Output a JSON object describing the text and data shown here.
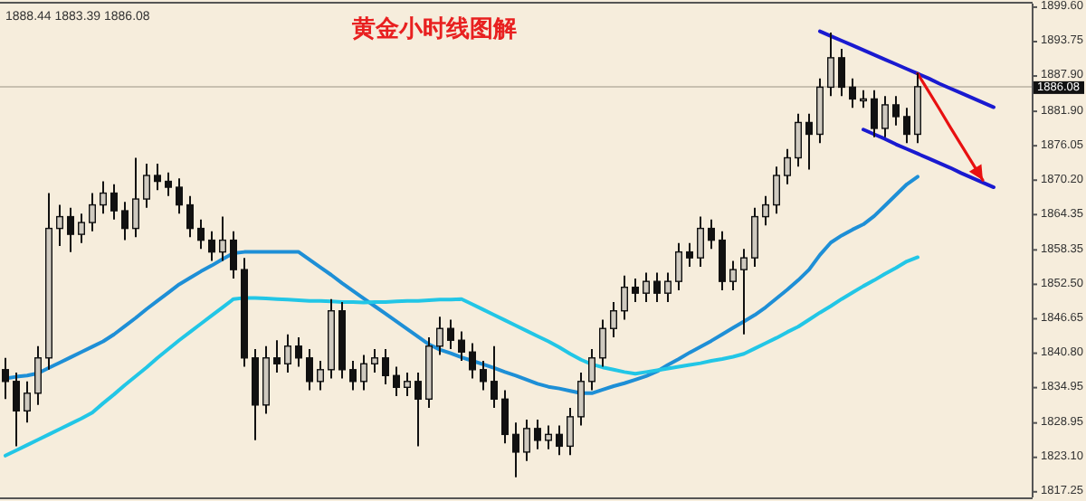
{
  "chart_data": {
    "type": "candlestick",
    "title": "黄金小时线图解",
    "annotations": [
      "1888.44 1883.39 1886.08"
    ],
    "categories": [
      null,
      null,
      null,
      null,
      null,
      null,
      null,
      null,
      null,
      null,
      null,
      null,
      null,
      null,
      null,
      null,
      null,
      null,
      null,
      null,
      null,
      null,
      null,
      null,
      null,
      null,
      null,
      null,
      null,
      null,
      null,
      null,
      null,
      null,
      null,
      null,
      null,
      null,
      null,
      null,
      null,
      null,
      null,
      null,
      null,
      null,
      null,
      null,
      null,
      null,
      null,
      null,
      null,
      null,
      null,
      null,
      null,
      null,
      null,
      null,
      null,
      null,
      null,
      null,
      null,
      null,
      null,
      null,
      null,
      null,
      null,
      null,
      null,
      null,
      null,
      null,
      null,
      null,
      null,
      null,
      null,
      null,
      null,
      null,
      null,
      null,
      null,
      null,
      null,
      null,
      null,
      null
    ],
    "ohlc": [
      [
        1838,
        1840,
        1833,
        1836
      ],
      [
        1836,
        1837.5,
        1825,
        1831
      ],
      [
        1831,
        1836,
        1829,
        1834
      ],
      [
        1834,
        1842,
        1832,
        1840
      ],
      [
        1840,
        1868,
        1838,
        1862
      ],
      [
        1862,
        1866,
        1859,
        1864
      ],
      [
        1864,
        1865.5,
        1858,
        1861
      ],
      [
        1861,
        1864.5,
        1859.5,
        1863
      ],
      [
        1863,
        1868,
        1861.5,
        1866
      ],
      [
        1866,
        1870,
        1864.5,
        1868
      ],
      [
        1868,
        1869.5,
        1863.5,
        1865
      ],
      [
        1865,
        1866.5,
        1860,
        1862
      ],
      [
        1862,
        1874,
        1860.5,
        1867
      ],
      [
        1867,
        1873,
        1865.5,
        1871
      ],
      [
        1871,
        1873,
        1868.5,
        1870
      ],
      [
        1870,
        1871.5,
        1867.5,
        1869
      ],
      [
        1869,
        1870.5,
        1864.5,
        1866
      ],
      [
        1866,
        1867.5,
        1860.5,
        1862
      ],
      [
        1862,
        1863.5,
        1858.5,
        1860
      ],
      [
        1860,
        1861.5,
        1856.5,
        1858
      ],
      [
        1858,
        1864,
        1856.5,
        1860
      ],
      [
        1860,
        1861.5,
        1853.5,
        1855
      ],
      [
        1855,
        1857,
        1838.5,
        1840
      ],
      [
        1840,
        1841.5,
        1826,
        1832
      ],
      [
        1832,
        1842,
        1830.5,
        1840
      ],
      [
        1840,
        1843,
        1837.5,
        1839
      ],
      [
        1839,
        1844,
        1837.5,
        1842
      ],
      [
        1842,
        1843.5,
        1838.5,
        1840
      ],
      [
        1840,
        1841.5,
        1834.5,
        1836
      ],
      [
        1836,
        1839.5,
        1834.5,
        1838
      ],
      [
        1838,
        1850,
        1836.5,
        1848
      ],
      [
        1848,
        1849.5,
        1836.5,
        1838
      ],
      [
        1838,
        1839.5,
        1834.5,
        1836
      ],
      [
        1836,
        1840.5,
        1834.5,
        1839
      ],
      [
        1839,
        1841.5,
        1837.5,
        1840
      ],
      [
        1840,
        1841.5,
        1835.5,
        1837
      ],
      [
        1837,
        1838.5,
        1833.5,
        1835
      ],
      [
        1835,
        1837.5,
        1833.5,
        1836
      ],
      [
        1836,
        1837.5,
        1825,
        1833
      ],
      [
        1833,
        1843.5,
        1831.5,
        1842
      ],
      [
        1842,
        1847,
        1840.5,
        1845
      ],
      [
        1845,
        1846.5,
        1841.5,
        1843
      ],
      [
        1843,
        1844.5,
        1839.5,
        1841
      ],
      [
        1841,
        1842.5,
        1836.5,
        1838
      ],
      [
        1838,
        1839.5,
        1834.5,
        1836
      ],
      [
        1836,
        1842,
        1831.5,
        1833
      ],
      [
        1833,
        1834.5,
        1825.5,
        1827
      ],
      [
        1827,
        1829,
        1819.7,
        1824
      ],
      [
        1824,
        1829.5,
        1822.5,
        1828
      ],
      [
        1828,
        1829.5,
        1824.5,
        1826
      ],
      [
        1826,
        1828.5,
        1824.5,
        1827
      ],
      [
        1827,
        1828.5,
        1823.5,
        1825
      ],
      [
        1825,
        1831.5,
        1823.5,
        1830
      ],
      [
        1830,
        1837.5,
        1828.5,
        1836
      ],
      [
        1836,
        1841.5,
        1834.5,
        1840
      ],
      [
        1840,
        1846.5,
        1838.5,
        1845
      ],
      [
        1845,
        1849.5,
        1843.5,
        1848
      ],
      [
        1848,
        1854,
        1846.5,
        1852
      ],
      [
        1852,
        1853.5,
        1849.5,
        1851
      ],
      [
        1851,
        1854.5,
        1849.5,
        1853
      ],
      [
        1853,
        1854.5,
        1849.5,
        1851
      ],
      [
        1851,
        1854.5,
        1849.5,
        1853
      ],
      [
        1853,
        1859.5,
        1851.5,
        1858
      ],
      [
        1858,
        1859.5,
        1855.5,
        1857
      ],
      [
        1857,
        1864,
        1855.5,
        1862
      ],
      [
        1862,
        1863.5,
        1858.5,
        1860
      ],
      [
        1860,
        1861.5,
        1851.5,
        1853
      ],
      [
        1853,
        1856.5,
        1851.5,
        1855
      ],
      [
        1855,
        1858.5,
        1844,
        1857
      ],
      [
        1857,
        1865.5,
        1855.5,
        1864
      ],
      [
        1864,
        1867.5,
        1862.5,
        1866
      ],
      [
        1866,
        1872.5,
        1864.5,
        1871
      ],
      [
        1871,
        1875.5,
        1869.5,
        1874
      ],
      [
        1874,
        1881.5,
        1872.5,
        1880
      ],
      [
        1880,
        1881.5,
        1872,
        1878
      ],
      [
        1878,
        1887.5,
        1876.5,
        1886
      ],
      [
        1886,
        1895.3,
        1884.5,
        1891
      ],
      [
        1891,
        1892.5,
        1884.5,
        1886
      ],
      [
        1886,
        1887.5,
        1882.5,
        1884
      ],
      [
        1884,
        1885.5,
        1882.5,
        1884
      ],
      [
        1884,
        1885.5,
        1877.5,
        1879
      ],
      [
        1879,
        1884.5,
        1877.5,
        1883
      ],
      [
        1883,
        1884.5,
        1879.5,
        1881
      ],
      [
        1881,
        1882.5,
        1876.5,
        1878
      ],
      [
        1878,
        1888.4,
        1876.5,
        1886.08
      ],
      null,
      null,
      null,
      null,
      null,
      null,
      null
    ],
    "series": [
      {
        "type": "line",
        "color": "#1e8fd6",
        "values": [
          1836.5,
          1836.8,
          1837.0,
          1837.4,
          1838.3,
          1839.2,
          1840.1,
          1841.0,
          1841.9,
          1842.8,
          1844.0,
          1845.4,
          1846.8,
          1848.3,
          1849.7,
          1851.1,
          1852.5,
          1853.6,
          1854.7,
          1855.7,
          1856.8,
          1857.8,
          1858.0,
          1858.0,
          1858.0,
          1858.0,
          1858.0,
          1858.0,
          1856.7,
          1855.4,
          1854.1,
          1852.7,
          1851.4,
          1850.1,
          1848.8,
          1847.5,
          1846.2,
          1844.9,
          1843.6,
          1842.3,
          1841.4,
          1840.8,
          1840.1,
          1839.5,
          1838.9,
          1838.3,
          1837.6,
          1837.0,
          1836.3,
          1835.6,
          1835.1,
          1834.8,
          1834.4,
          1834.0,
          1834.0,
          1834.6,
          1835.2,
          1835.7,
          1836.3,
          1836.9,
          1837.7,
          1838.8,
          1839.8,
          1840.9,
          1841.9,
          1842.9,
          1844.0,
          1845.1,
          1846.2,
          1847.3,
          1848.6,
          1850.1,
          1851.6,
          1853.2,
          1855.0,
          1857.5,
          1859.6,
          1860.8,
          1861.8,
          1862.7,
          1864.1,
          1865.9,
          1867.7,
          1869.5,
          1870.8,
          null,
          null,
          null,
          null,
          null,
          null,
          null
        ]
      },
      {
        "type": "line",
        "color": "#22c6e6",
        "values": [
          1823.4,
          1824.3,
          1825.2,
          1826.1,
          1827.0,
          1827.9,
          1828.8,
          1829.7,
          1830.7,
          1832.3,
          1833.8,
          1835.4,
          1836.9,
          1838.4,
          1840.0,
          1841.5,
          1843.0,
          1844.4,
          1845.8,
          1847.2,
          1848.6,
          1850.0,
          1850.2,
          1850.2,
          1850.1,
          1850.0,
          1849.9,
          1849.8,
          1849.7,
          1849.7,
          1849.6,
          1849.5,
          1849.5,
          1849.4,
          1849.5,
          1849.5,
          1849.6,
          1849.7,
          1849.7,
          1849.8,
          1849.9,
          1849.9,
          1850.0,
          1849.1,
          1848.2,
          1847.3,
          1846.4,
          1845.5,
          1844.6,
          1843.7,
          1842.8,
          1841.8,
          1840.7,
          1839.7,
          1838.9,
          1838.4,
          1838.0,
          1837.6,
          1837.3,
          1837.6,
          1837.9,
          1838.2,
          1838.5,
          1838.8,
          1839.1,
          1839.5,
          1839.8,
          1840.2,
          1840.7,
          1841.6,
          1842.5,
          1843.4,
          1844.4,
          1845.3,
          1846.5,
          1847.7,
          1848.8,
          1850.0,
          1851.1,
          1852.2,
          1853.2,
          1854.3,
          1855.3,
          1856.4,
          1857.1,
          null,
          null,
          null,
          null,
          null,
          null,
          null
        ]
      },
      {
        "type": "line",
        "color": "#1a1ad0",
        "values": [
          null,
          null,
          null,
          null,
          null,
          null,
          null,
          null,
          null,
          null,
          null,
          null,
          null,
          null,
          null,
          null,
          null,
          null,
          null,
          null,
          null,
          null,
          null,
          null,
          null,
          null,
          null,
          null,
          null,
          null,
          null,
          null,
          null,
          null,
          null,
          null,
          null,
          null,
          null,
          null,
          null,
          null,
          null,
          null,
          null,
          null,
          null,
          null,
          null,
          null,
          null,
          null,
          null,
          null,
          null,
          null,
          null,
          null,
          null,
          null,
          null,
          null,
          null,
          null,
          null,
          null,
          null,
          null,
          null,
          null,
          null,
          null,
          null,
          null,
          null,
          1895.5,
          1894.7,
          1893.9,
          1893.1,
          1892.3,
          1891.5,
          1890.7,
          1889.9,
          1889.1,
          1888.3,
          1887.5,
          1886.6,
          1885.8,
          1885.0,
          1884.2,
          1883.4,
          1882.6
        ]
      },
      {
        "type": "line",
        "color": "#1a1ad0",
        "values": [
          null,
          null,
          null,
          null,
          null,
          null,
          null,
          null,
          null,
          null,
          null,
          null,
          null,
          null,
          null,
          null,
          null,
          null,
          null,
          null,
          null,
          null,
          null,
          null,
          null,
          null,
          null,
          null,
          null,
          null,
          null,
          null,
          null,
          null,
          null,
          null,
          null,
          null,
          null,
          null,
          null,
          null,
          null,
          null,
          null,
          null,
          null,
          null,
          null,
          null,
          null,
          null,
          null,
          null,
          null,
          null,
          null,
          null,
          null,
          null,
          null,
          null,
          null,
          null,
          null,
          null,
          null,
          null,
          null,
          null,
          null,
          null,
          null,
          null,
          null,
          null,
          null,
          null,
          null,
          1878.8,
          1878.0,
          1877.2,
          1876.3,
          1875.5,
          1874.7,
          1873.9,
          1873.1,
          1872.3,
          1871.4,
          1870.6,
          1869.8,
          1869.0
        ]
      },
      {
        "type": "line",
        "color": "#e81010",
        "values": [
          null,
          null,
          null,
          null,
          null,
          null,
          null,
          null,
          null,
          null,
          null,
          null,
          null,
          null,
          null,
          null,
          null,
          null,
          null,
          null,
          null,
          null,
          null,
          null,
          null,
          null,
          null,
          null,
          null,
          null,
          null,
          null,
          null,
          null,
          null,
          null,
          null,
          null,
          null,
          null,
          null,
          null,
          null,
          null,
          null,
          null,
          null,
          null,
          null,
          null,
          null,
          null,
          null,
          null,
          null,
          null,
          null,
          null,
          null,
          null,
          null,
          null,
          null,
          null,
          null,
          null,
          null,
          null,
          null,
          null,
          null,
          null,
          null,
          null,
          null,
          null,
          null,
          null,
          null,
          null,
          null,
          null,
          null,
          null,
          1888.3,
          1885.3,
          1882.3,
          1879.2,
          1876.2,
          1873.2,
          1870.2,
          null
        ]
      }
    ],
    "ref_lines": [
      {
        "axis": "y",
        "value": 1886.08,
        "label": "1886.08",
        "color": "#c8c0b0"
      }
    ],
    "ylim": [
      1816.3,
      1900.2
    ],
    "yticks": [
      {
        "value": 1899.6,
        "label": "1899.60"
      },
      {
        "value": 1893.75,
        "label": "1893.75"
      },
      {
        "value": 1887.9,
        "label": "1887.90"
      },
      {
        "value": 1881.9,
        "label": "1881.90"
      },
      {
        "value": 1876.05,
        "label": "1876.05"
      },
      {
        "value": 1870.2,
        "label": "1870.20"
      },
      {
        "value": 1864.35,
        "label": "1864.35"
      },
      {
        "value": 1858.35,
        "label": "1858.35"
      },
      {
        "value": 1852.5,
        "label": "1852.50"
      },
      {
        "value": 1846.65,
        "label": "1846.65"
      },
      {
        "value": 1840.8,
        "label": "1840.80"
      },
      {
        "value": 1834.95,
        "label": "1834.95"
      },
      {
        "value": 1828.95,
        "label": "1828.95"
      },
      {
        "value": 1823.1,
        "label": "1823.10"
      },
      {
        "value": 1817.25,
        "label": "1817.25"
      }
    ],
    "tick_labels": "y"
  }
}
